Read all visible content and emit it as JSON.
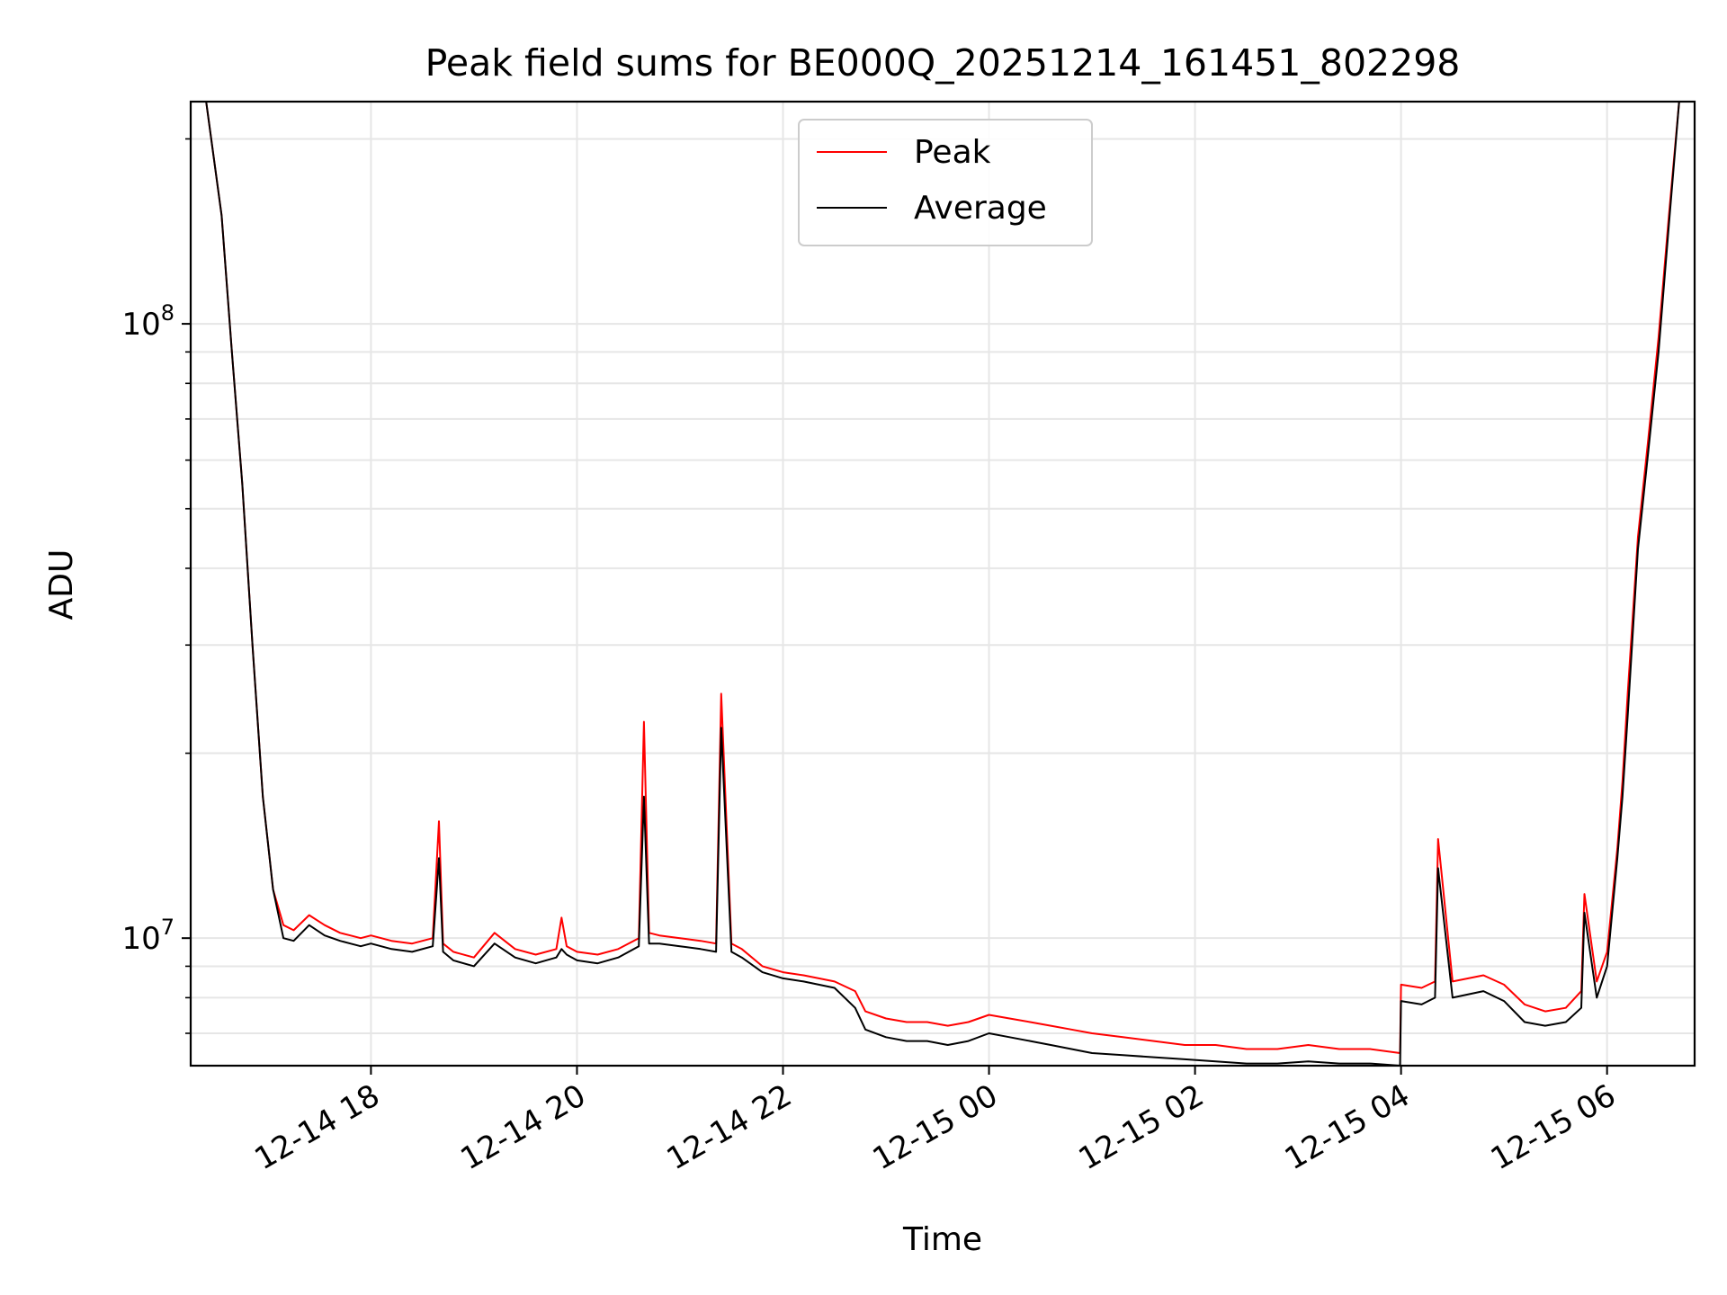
{
  "chart_data": {
    "type": "line",
    "title": "Peak field sums for BE000Q_20251214_161451_802298",
    "xlabel": "Time",
    "ylabel": "ADU",
    "yscale": "log",
    "grid": true,
    "legend_position": "top-center",
    "x_unit": "hours since 2025-12-14 16:00",
    "xlim": [
      16.25,
      30.85
    ],
    "ylim": [
      6200000,
      230000000
    ],
    "x_ticks": [
      {
        "value": 18,
        "label": "12-14 18"
      },
      {
        "value": 20,
        "label": "12-14 20"
      },
      {
        "value": 22,
        "label": "12-14 22"
      },
      {
        "value": 24,
        "label": "12-15 00"
      },
      {
        "value": 26,
        "label": "12-15 02"
      },
      {
        "value": 28,
        "label": "12-15 04"
      },
      {
        "value": 30,
        "label": "12-15 06"
      }
    ],
    "y_major_ticks": [
      {
        "value": 10000000,
        "base": "10",
        "exp": "7"
      },
      {
        "value": 100000000,
        "base": "10",
        "exp": "8"
      }
    ],
    "y_minor_ticks": [
      6000000,
      7000000,
      8000000,
      9000000,
      20000000,
      30000000,
      40000000,
      50000000,
      60000000,
      70000000,
      80000000,
      90000000,
      200000000
    ],
    "series": [
      {
        "name": "Peak",
        "color": "#ff0000",
        "x": [
          16.4,
          16.55,
          16.65,
          16.75,
          16.85,
          16.95,
          17.05,
          17.15,
          17.25,
          17.4,
          17.55,
          17.7,
          17.8,
          17.9,
          18.0,
          18.2,
          18.4,
          18.6,
          18.66,
          18.7,
          18.8,
          19.0,
          19.2,
          19.4,
          19.6,
          19.8,
          19.85,
          19.9,
          20.0,
          20.2,
          20.4,
          20.6,
          20.65,
          20.7,
          20.8,
          21.0,
          21.2,
          21.35,
          21.4,
          21.5,
          21.6,
          21.8,
          22.0,
          22.2,
          22.5,
          22.7,
          22.8,
          23.0,
          23.2,
          23.4,
          23.6,
          23.8,
          24.0,
          24.2,
          24.4,
          24.6,
          24.8,
          25.0,
          25.3,
          25.6,
          25.9,
          26.2,
          26.5,
          26.8,
          27.1,
          27.4,
          27.7,
          27.99,
          28.0,
          28.2,
          28.33,
          28.36,
          28.5,
          28.8,
          29.0,
          29.2,
          29.4,
          29.6,
          29.75,
          29.78,
          29.9,
          30.0,
          30.1,
          30.15,
          30.2,
          30.3,
          30.4,
          30.5,
          30.6,
          30.7
        ],
        "values": [
          230000000,
          150000000,
          90000000,
          55000000,
          30000000,
          17000000,
          12000000,
          10500000,
          10300000,
          10900000,
          10500000,
          10200000,
          10100000,
          10000000,
          10100000,
          9900000,
          9800000,
          10000000,
          15500000,
          9800000,
          9500000,
          9300000,
          10200000,
          9600000,
          9400000,
          9600000,
          10800000,
          9700000,
          9500000,
          9400000,
          9600000,
          10000000,
          22500000,
          10200000,
          10100000,
          10000000,
          9900000,
          9800000,
          25000000,
          9800000,
          9600000,
          9000000,
          8800000,
          8700000,
          8500000,
          8200000,
          7600000,
          7400000,
          7300000,
          7300000,
          7200000,
          7300000,
          7500000,
          7400000,
          7300000,
          7200000,
          7100000,
          7000000,
          6900000,
          6800000,
          6700000,
          6700000,
          6600000,
          6600000,
          6700000,
          6600000,
          6600000,
          6500000,
          8400000,
          8300000,
          8500000,
          14500000,
          8500000,
          8700000,
          8400000,
          7800000,
          7600000,
          7700000,
          8200000,
          11800000,
          8500000,
          9500000,
          14000000,
          18000000,
          25000000,
          45000000,
          65000000,
          95000000,
          150000000,
          230000000
        ]
      },
      {
        "name": "Average",
        "color": "#000000",
        "x": [
          16.4,
          16.55,
          16.65,
          16.75,
          16.85,
          16.95,
          17.05,
          17.15,
          17.25,
          17.4,
          17.55,
          17.7,
          17.8,
          17.9,
          18.0,
          18.2,
          18.4,
          18.6,
          18.66,
          18.7,
          18.8,
          19.0,
          19.2,
          19.4,
          19.6,
          19.8,
          19.85,
          19.9,
          20.0,
          20.2,
          20.4,
          20.6,
          20.65,
          20.7,
          20.8,
          21.0,
          21.2,
          21.35,
          21.4,
          21.5,
          21.6,
          21.8,
          22.0,
          22.2,
          22.5,
          22.7,
          22.8,
          23.0,
          23.2,
          23.4,
          23.6,
          23.8,
          24.0,
          24.2,
          24.4,
          24.6,
          24.8,
          25.0,
          25.3,
          25.6,
          25.9,
          26.2,
          26.5,
          26.8,
          27.1,
          27.4,
          27.7,
          27.99,
          28.0,
          28.2,
          28.33,
          28.36,
          28.5,
          28.8,
          29.0,
          29.2,
          29.4,
          29.6,
          29.75,
          29.78,
          29.9,
          30.0,
          30.1,
          30.15,
          30.2,
          30.3,
          30.4,
          30.5,
          30.6,
          30.7
        ],
        "values": [
          230000000,
          150000000,
          90000000,
          55000000,
          30000000,
          17000000,
          12000000,
          10000000,
          9900000,
          10500000,
          10100000,
          9900000,
          9800000,
          9700000,
          9800000,
          9600000,
          9500000,
          9700000,
          13500000,
          9500000,
          9200000,
          9000000,
          9800000,
          9300000,
          9100000,
          9300000,
          9600000,
          9400000,
          9200000,
          9100000,
          9300000,
          9700000,
          17000000,
          9800000,
          9800000,
          9700000,
          9600000,
          9500000,
          22000000,
          9500000,
          9300000,
          8800000,
          8600000,
          8500000,
          8300000,
          7700000,
          7100000,
          6900000,
          6800000,
          6800000,
          6700000,
          6800000,
          7000000,
          6900000,
          6800000,
          6700000,
          6600000,
          6500000,
          6450000,
          6400000,
          6350000,
          6300000,
          6250000,
          6250000,
          6300000,
          6250000,
          6250000,
          6200000,
          7900000,
          7800000,
          8000000,
          13000000,
          8000000,
          8200000,
          7900000,
          7300000,
          7200000,
          7300000,
          7700000,
          11000000,
          8000000,
          9000000,
          13500000,
          17000000,
          23000000,
          43000000,
          62000000,
          90000000,
          145000000,
          230000000
        ]
      }
    ]
  }
}
